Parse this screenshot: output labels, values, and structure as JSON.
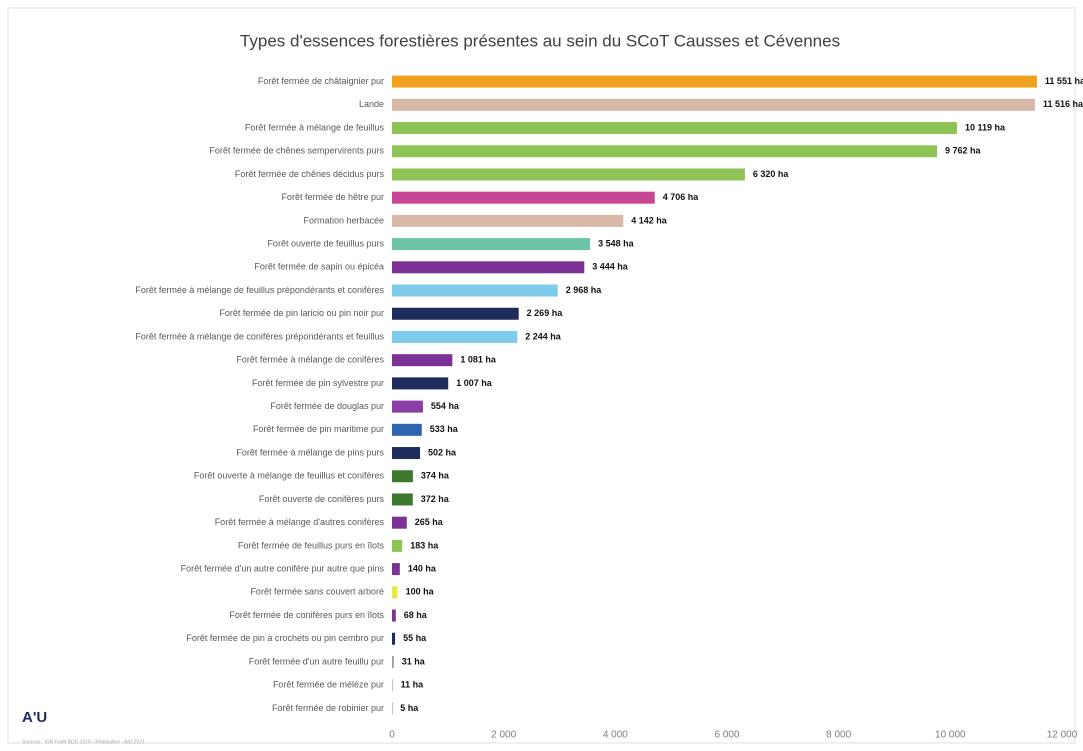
{
  "chart_data": {
    "type": "hbar",
    "title": "Types d'essences forestières présentes au sein du SCoT Causses et Cévennes",
    "source": "Sources : IGN Forêt BDD 2018 - Réalisation : AtU 2021",
    "logo": "A'U",
    "categories": [
      "Forêt fermée de châtaignier pur",
      "Lande",
      "Forêt fermée à mélange de feuillus",
      "Forêt fermée de chênes sempervirents purs",
      "Forêt fermée de chênes décidus purs",
      "Forêt fermée de hêtre pur",
      "Formation herbacée",
      "Forêt ouverte de feuillus purs",
      "Forêt fermée de sapin ou épicéa",
      "Forêt fermée à mélange de feuillus prépondérants et conifères",
      "Forêt fermée de pin laricio ou pin noir pur",
      "Forêt fermée à mélange de conifères prépondérants et feuillus",
      "Forêt fermée à mélange de conifères",
      "Forêt fermée de pin sylvestre pur",
      "Forêt fermée de douglas pur",
      "Forêt fermée de pin maritime pur",
      "Forêt fermée à mélange de pins purs",
      "Forêt ouverte à mélange de feuillus et conifères",
      "Forêt ouverte de conifères purs",
      "Forêt fermée à mélange d'autres conifères",
      "Forêt fermée de feuillus purs en îlots",
      "Forêt fermée d'un autre conifère pur autre que pins",
      "Forêt fermée sans couvert arboré",
      "Forêt fermée de conifères purs en îlots",
      "Forêt fermée de pin à crochets ou pin cembro pur",
      "Forêt fermée d'un autre feuillu pur",
      "Forêt fermée de mélèze pur",
      "Forêt fermée de robinier pur"
    ],
    "values": [
      11551,
      11516,
      10119,
      9762,
      6320,
      4706,
      4142,
      3548,
      3444,
      2968,
      2269,
      2244,
      1081,
      1007,
      554,
      533,
      502,
      374,
      372,
      265,
      183,
      140,
      100,
      68,
      55,
      31,
      11,
      5
    ],
    "value_labels": [
      "11 551 ha",
      "11 516 ha",
      "10 119 ha",
      "9 762 ha",
      "6 320 ha",
      "4 706 ha",
      "4 142 ha",
      "3 548 ha",
      "3 444 ha",
      "2 968 ha",
      "2 269 ha",
      "2 244 ha",
      "1 081 ha",
      "1 007 ha",
      "554 ha",
      "533 ha",
      "502 ha",
      "374 ha",
      "372 ha",
      "265 ha",
      "183 ha",
      "140 ha",
      "100 ha",
      "68 ha",
      "55 ha",
      "31 ha",
      "11 ha",
      "5 ha"
    ],
    "colors": [
      "#f0a21f",
      "#d8b9a8",
      "#8dc455",
      "#8dc455",
      "#8dc455",
      "#c84593",
      "#d8b9a8",
      "#6cc3a8",
      "#7b3294",
      "#7fcbec",
      "#1f2d5c",
      "#7fcbec",
      "#7b3294",
      "#1f2d5c",
      "#8b3fa6",
      "#2f64b0",
      "#1f2d5c",
      "#3d7a2f",
      "#3d7a2f",
      "#7b3294",
      "#8dc455",
      "#7b3294",
      "#e8e84a",
      "#7b3294",
      "#1f2d5c",
      "#9a9a9a",
      "#9a9a9a",
      "#9a9a9a"
    ],
    "xlim": [
      0,
      12000
    ],
    "xticks": [
      0,
      {
        "value": 2000,
        "label": "2 000"
      },
      {
        "value": 4000,
        "label": "4 000"
      },
      {
        "value": 6000,
        "label": "6 000"
      },
      {
        "value": 8000,
        "label": "8 000"
      },
      {
        "value": 10000,
        "label": "10 000"
      },
      {
        "value": 12000,
        "label": "12 000"
      }
    ]
  }
}
